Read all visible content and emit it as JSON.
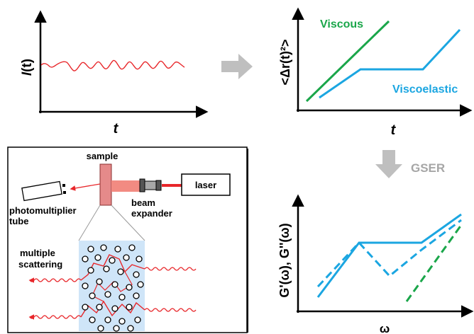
{
  "panel_intensity": {
    "ylabel_main": "I",
    "ylabel_arg": "(t)",
    "xlabel": "t"
  },
  "panel_msd": {
    "ylabel": "<Δr(t)²>",
    "xlabel": "t",
    "label_viscous": "Viscous",
    "label_viscoelastic": "Viscoelastic"
  },
  "transition": {
    "label": "GSER"
  },
  "panel_moduli": {
    "ylabel": "G'(ω),  G''(ω)",
    "xlabel": "ω"
  },
  "setup": {
    "label_sample": "sample",
    "label_laser": "laser",
    "label_beam": "beam",
    "label_expander": "expander",
    "label_photomultiplier": "photomultiplier",
    "label_tube": "tube",
    "label_multiple": "multiple",
    "label_scattering": "scattering"
  },
  "colors": {
    "axis": "#000000",
    "intensity_trace": "#e8262a",
    "viscous": "#1aa64a",
    "viscoelastic": "#1ba6e1",
    "arrow_gray": "#bfbfbf",
    "gser_text": "#a6a6a6",
    "laser_red": "#e8262a",
    "beam_light": "#f28b82",
    "sample_fill": "#e58a8a",
    "sample_region": "#cfe5f8",
    "panel_border": "#000000"
  }
}
